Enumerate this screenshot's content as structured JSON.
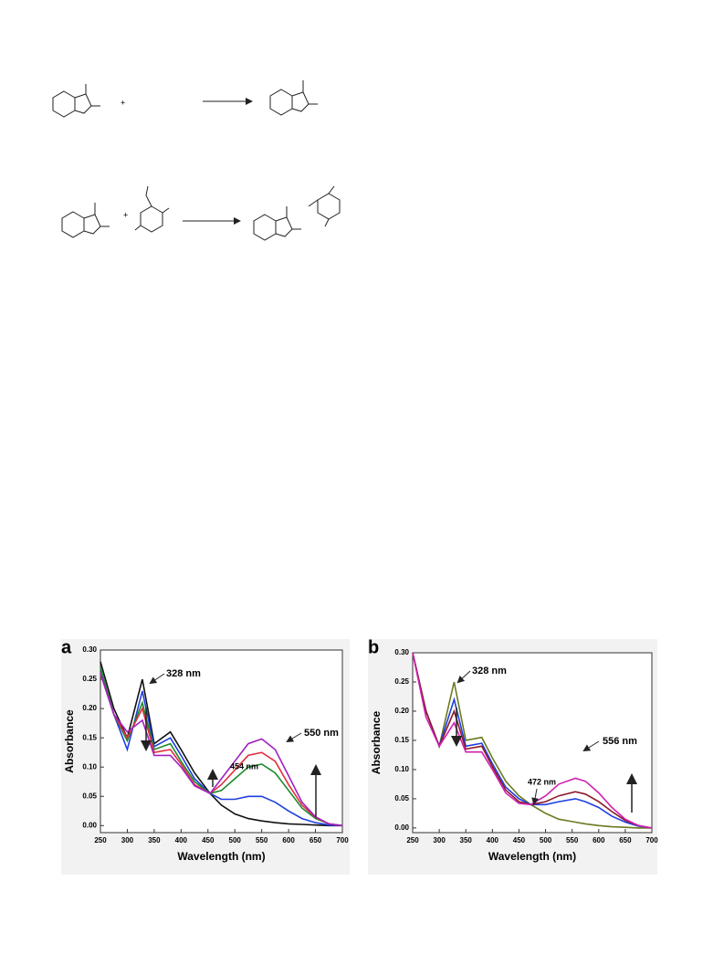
{
  "schemes": [
    {
      "operator": "+"
    },
    {
      "operator": "+"
    }
  ],
  "chart_data": [
    {
      "type": "line",
      "panel": "a",
      "xlabel": "Wavelength (nm)",
      "ylabel": "Absorbance",
      "annotations": [
        "328 nm",
        "550 nm",
        "454 nm"
      ],
      "x": [
        250,
        275,
        300,
        328,
        350,
        380,
        400,
        425,
        454,
        475,
        500,
        525,
        550,
        575,
        600,
        625,
        650,
        675,
        700
      ],
      "series": [
        {
          "color": "#111111",
          "values": [
            0.28,
            0.2,
            0.15,
            0.25,
            0.14,
            0.16,
            0.13,
            0.09,
            0.055,
            0.035,
            0.02,
            0.012,
            0.008,
            0.005,
            0.003,
            0.002,
            0.001,
            0,
            0
          ]
        },
        {
          "color": "#1f3fe0",
          "values": [
            0.27,
            0.19,
            0.13,
            0.23,
            0.135,
            0.15,
            0.12,
            0.08,
            0.055,
            0.045,
            0.045,
            0.05,
            0.05,
            0.04,
            0.025,
            0.012,
            0.005,
            0.001,
            0
          ]
        },
        {
          "color": "#1a8a2a",
          "values": [
            0.27,
            0.19,
            0.145,
            0.21,
            0.13,
            0.14,
            0.11,
            0.075,
            0.055,
            0.06,
            0.08,
            0.1,
            0.105,
            0.09,
            0.06,
            0.03,
            0.012,
            0.003,
            0
          ]
        },
        {
          "color": "#e03040",
          "values": [
            0.26,
            0.19,
            0.15,
            0.2,
            0.125,
            0.13,
            0.105,
            0.07,
            0.055,
            0.07,
            0.095,
            0.12,
            0.125,
            0.11,
            0.07,
            0.035,
            0.014,
            0.003,
            0
          ]
        },
        {
          "color": "#a020c0",
          "values": [
            0.26,
            0.19,
            0.16,
            0.18,
            0.12,
            0.12,
            0.1,
            0.068,
            0.055,
            0.08,
            0.11,
            0.14,
            0.148,
            0.13,
            0.085,
            0.04,
            0.015,
            0.003,
            0
          ]
        }
      ],
      "xlim": [
        250,
        700
      ],
      "xticks": [
        250,
        300,
        350,
        400,
        450,
        500,
        550,
        600,
        650,
        700
      ],
      "ylim": [
        -0.012,
        0.3
      ],
      "yticks": [
        {
          "value": 0,
          "label": "0.00"
        },
        {
          "value": 0.05,
          "label": "0.05"
        },
        {
          "value": 0.1,
          "label": "0.10"
        },
        {
          "value": 0.15,
          "label": "0.15"
        },
        {
          "value": 0.2,
          "label": "0.20"
        },
        {
          "value": 0.25,
          "label": "0.25"
        },
        {
          "value": 0.3,
          "label": "0.30"
        }
      ]
    },
    {
      "type": "line",
      "panel": "b",
      "xlabel": "Wavelength (nm)",
      "ylabel": "Absorbance",
      "annotations": [
        "328 nm",
        "556 nm",
        "472 nm"
      ],
      "x": [
        250,
        275,
        300,
        328,
        350,
        380,
        400,
        425,
        450,
        472,
        500,
        525,
        556,
        575,
        600,
        625,
        650,
        675,
        700
      ],
      "series": [
        {
          "color": "#6b7a20",
          "values": [
            0.3,
            0.2,
            0.14,
            0.25,
            0.15,
            0.155,
            0.12,
            0.08,
            0.055,
            0.04,
            0.025,
            0.015,
            0.01,
            0.007,
            0.004,
            0.002,
            0.001,
            0,
            0
          ]
        },
        {
          "color": "#1f3fe0",
          "values": [
            0.3,
            0.2,
            0.14,
            0.22,
            0.14,
            0.145,
            0.11,
            0.07,
            0.05,
            0.04,
            0.04,
            0.045,
            0.05,
            0.045,
            0.035,
            0.02,
            0.01,
            0.003,
            0
          ]
        },
        {
          "color": "#8b1a2a",
          "values": [
            0.3,
            0.2,
            0.14,
            0.2,
            0.135,
            0.14,
            0.105,
            0.065,
            0.045,
            0.04,
            0.045,
            0.055,
            0.062,
            0.058,
            0.045,
            0.028,
            0.013,
            0.004,
            0
          ]
        },
        {
          "color": "#d020b0",
          "values": [
            0.3,
            0.19,
            0.14,
            0.18,
            0.13,
            0.13,
            0.1,
            0.06,
            0.042,
            0.04,
            0.055,
            0.075,
            0.085,
            0.08,
            0.06,
            0.035,
            0.015,
            0.004,
            0
          ]
        }
      ],
      "xlim": [
        250,
        700
      ],
      "xticks": [
        250,
        300,
        350,
        400,
        450,
        500,
        550,
        600,
        650,
        700
      ],
      "ylim": [
        -0.008,
        0.3
      ],
      "yticks": [
        {
          "value": 0,
          "label": "0.00"
        },
        {
          "value": 0.05,
          "label": "0.05"
        },
        {
          "value": 0.1,
          "label": "0.10"
        },
        {
          "value": 0.15,
          "label": "0.15"
        },
        {
          "value": 0.2,
          "label": "0.20"
        },
        {
          "value": 0.25,
          "label": "0.25"
        },
        {
          "value": 0.3,
          "label": "0.30"
        }
      ]
    }
  ]
}
